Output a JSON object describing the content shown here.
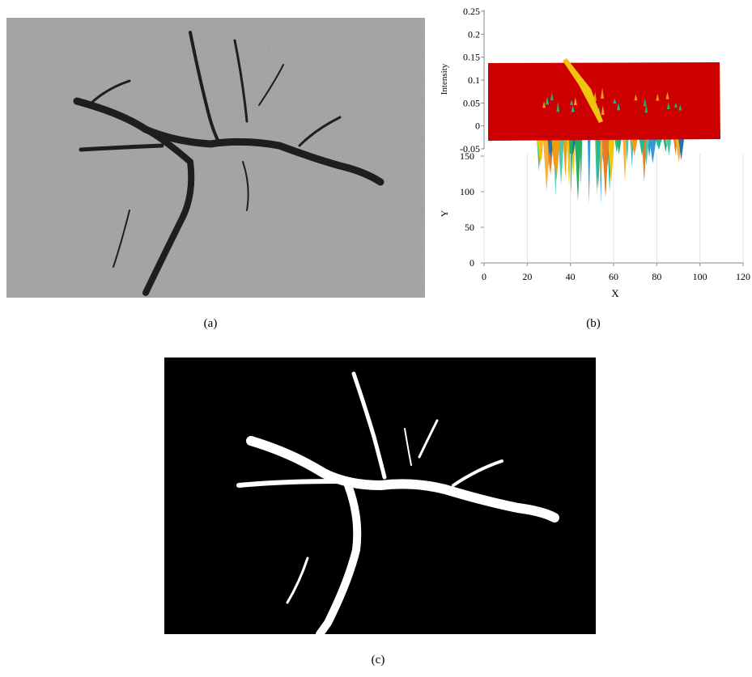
{
  "panels": {
    "a": {
      "label": "(a)"
    },
    "b": {
      "label": "(b)"
    },
    "c": {
      "label": "(c)"
    }
  },
  "plot": {
    "z_label": "Intensity",
    "zlim": [
      -0.05,
      0.25
    ],
    "z_ticks": [
      0.25,
      0.2,
      0.15,
      0.1,
      0.05,
      0,
      -0.05
    ],
    "y_label": "Y",
    "ylim": [
      0,
      150
    ],
    "y_ticks": [
      0,
      50,
      100,
      150
    ],
    "x_label": "X",
    "xlim": [
      0,
      120
    ],
    "x_ticks": [
      0,
      20,
      40,
      60,
      80,
      100,
      120
    ]
  }
}
